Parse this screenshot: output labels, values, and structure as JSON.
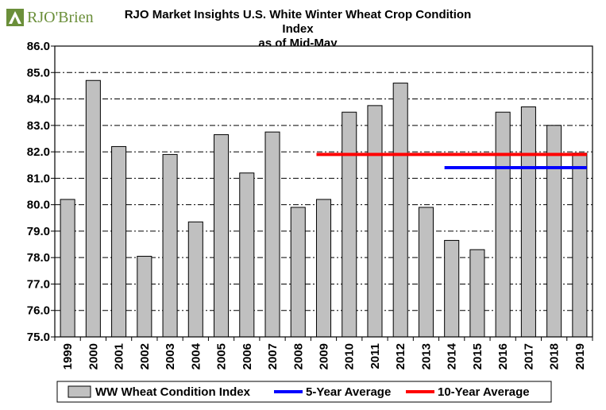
{
  "logo": {
    "text": "RJO'Brien",
    "icon": "rjo-leaf-logo",
    "color": "#6b8f3a"
  },
  "chart_data": {
    "type": "bar",
    "title": "RJO Market Insights U.S. White Winter Wheat Crop Condition Index",
    "subtitle": "as of Mid-May",
    "xlabel": "",
    "ylabel": "",
    "ylim": [
      75.0,
      86.0
    ],
    "yticks": [
      "75.0",
      "76.0",
      "77.0",
      "78.0",
      "79.0",
      "80.0",
      "81.0",
      "82.0",
      "83.0",
      "84.0",
      "85.0",
      "86.0"
    ],
    "grid": true,
    "grid_style": "dash-dot",
    "legend_position": "bottom",
    "categories": [
      "1999",
      "2000",
      "2001",
      "2002",
      "2003",
      "2004",
      "2005",
      "2006",
      "2007",
      "2008",
      "2009",
      "2010",
      "2011",
      "2012",
      "2013",
      "2014",
      "2015",
      "2016",
      "2017",
      "2018",
      "2019"
    ],
    "series": [
      {
        "name": "WW Wheat Condition Index",
        "type": "bar",
        "color": "#c0c0c0",
        "values": [
          80.2,
          84.7,
          82.2,
          78.05,
          81.9,
          79.35,
          82.65,
          81.2,
          82.75,
          79.9,
          80.2,
          83.5,
          83.75,
          84.6,
          79.9,
          78.65,
          78.3,
          83.5,
          83.7,
          83.0,
          81.95
        ]
      },
      {
        "name": "5-Year Average",
        "type": "line",
        "color": "#0000ff",
        "x": [
          "2014",
          "2019"
        ],
        "values": [
          81.4,
          81.4
        ]
      },
      {
        "name": "10-Year Average",
        "type": "line",
        "color": "#ff0000",
        "x": [
          "2009",
          "2019"
        ],
        "values": [
          81.9,
          81.9
        ]
      }
    ]
  }
}
